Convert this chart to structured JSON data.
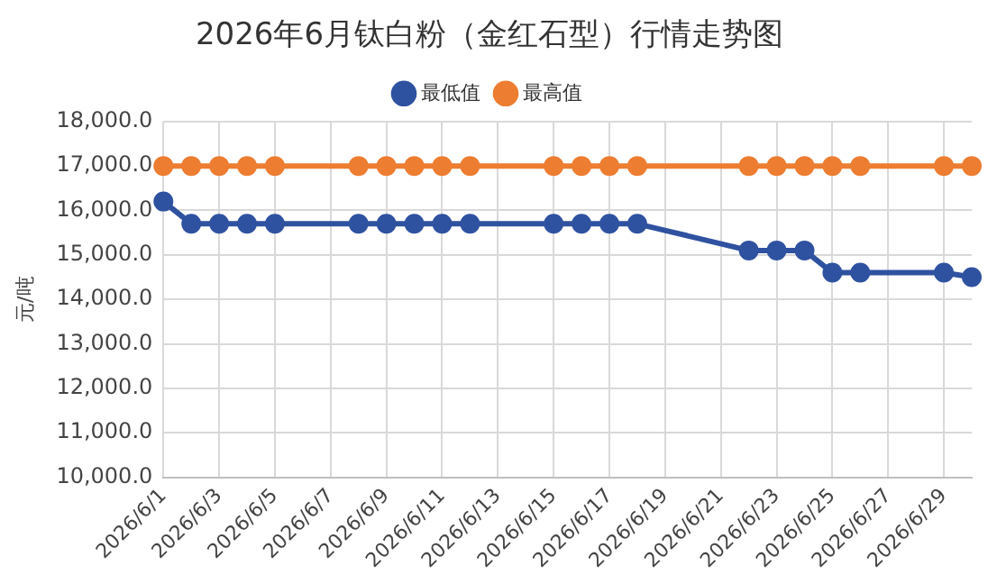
{
  "chart_data": {
    "type": "line",
    "title": "2026年6月钛白粉（金红石型）行情走势图",
    "ylabel": "元/吨",
    "categories": [
      "2026/6/1",
      null,
      "2026/6/3",
      null,
      "2026/6/5",
      null,
      "2026/6/7",
      null,
      "2026/6/9",
      null,
      "2026/6/11",
      null,
      "2026/6/13",
      null,
      "2026/6/15",
      null,
      "2026/6/17",
      null,
      "2026/6/19",
      null,
      "2026/6/21",
      null,
      "2026/6/23",
      null,
      "2026/6/25",
      null,
      "2026/6/27",
      null,
      "2026/6/29",
      null
    ],
    "series": [
      {
        "name": "最低值",
        "color": "#2f52a0",
        "values": [
          16200,
          15700,
          15700,
          15700,
          15700,
          null,
          null,
          15700,
          15700,
          15700,
          15700,
          15700,
          null,
          null,
          15700,
          15700,
          15700,
          15700,
          null,
          null,
          null,
          15100,
          15100,
          15100,
          14600,
          14600,
          null,
          null,
          14600,
          14500
        ]
      },
      {
        "name": "最高值",
        "color": "#ed7d31",
        "values": [
          17000,
          17000,
          17000,
          17000,
          17000,
          null,
          null,
          17000,
          17000,
          17000,
          17000,
          17000,
          null,
          null,
          17000,
          17000,
          17000,
          17000,
          null,
          null,
          null,
          17000,
          17000,
          17000,
          17000,
          17000,
          null,
          null,
          17000,
          17000
        ]
      }
    ],
    "ylim": [
      10000,
      18000
    ],
    "yticks": [
      {
        "value": 10000,
        "label": "10,000.0"
      },
      {
        "value": 11000,
        "label": "11,000.0"
      },
      {
        "value": 12000,
        "label": "12,000.0"
      },
      {
        "value": 13000,
        "label": "13,000.0"
      },
      {
        "value": 14000,
        "label": "14,000.0"
      },
      {
        "value": 15000,
        "label": "15,000.0"
      },
      {
        "value": 16000,
        "label": "16,000.0"
      },
      {
        "value": 17000,
        "label": "17,000.0"
      },
      {
        "value": 18000,
        "label": "18,000.0"
      }
    ],
    "grid": true,
    "legend": "top",
    "marker": "circle",
    "line_style": "solid"
  }
}
